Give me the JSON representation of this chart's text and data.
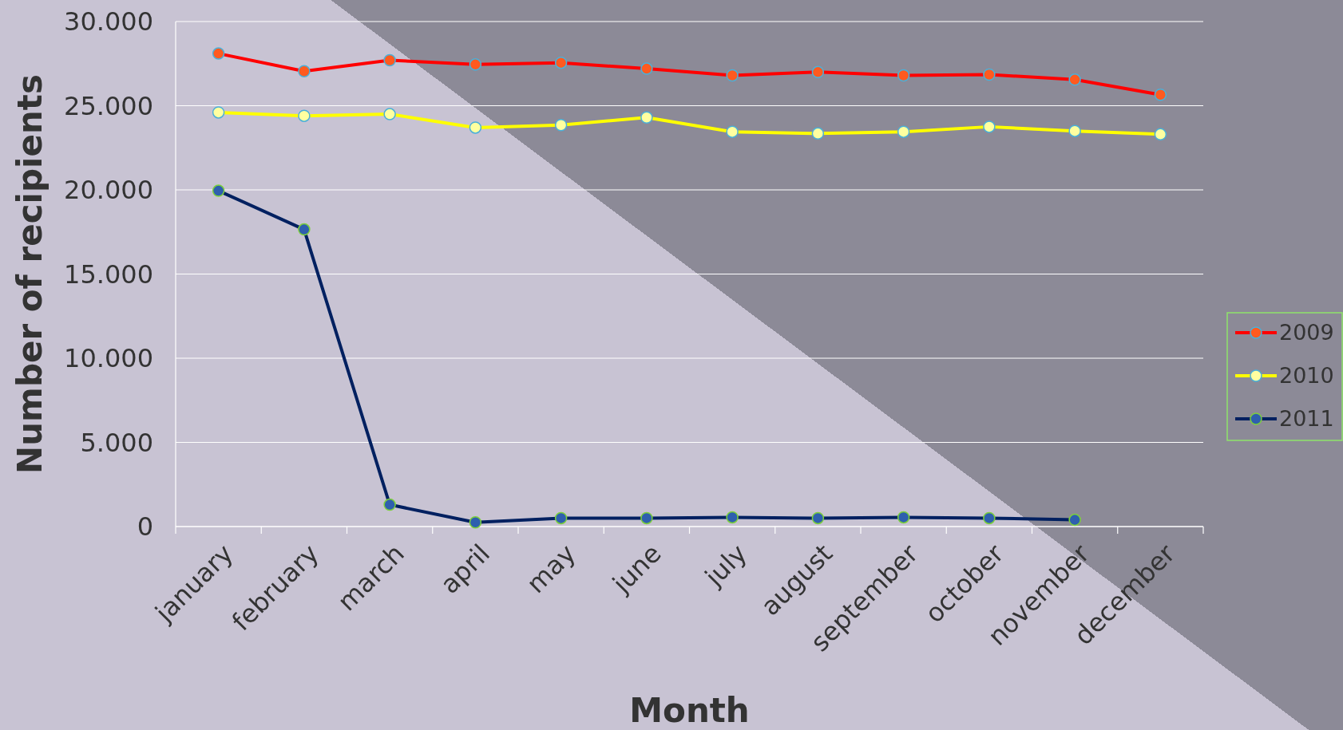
{
  "chart_data": {
    "type": "line",
    "xlabel": "Month",
    "ylabel": "Number of recipients",
    "categories": [
      "january",
      "february",
      "march",
      "april",
      "may",
      "june",
      "july",
      "august",
      "september",
      "october",
      "november",
      "december"
    ],
    "series": [
      {
        "name": "2009",
        "color": "#ff0000",
        "values": [
          28100,
          27050,
          27700,
          27450,
          27550,
          27200,
          26800,
          27000,
          26800,
          26850,
          26550,
          25650
        ]
      },
      {
        "name": "2010",
        "color": "#ffff00",
        "values": [
          24600,
          24400,
          24500,
          23700,
          23850,
          24300,
          23450,
          23350,
          23450,
          23750,
          23500,
          23300
        ]
      },
      {
        "name": "2011",
        "color": "#002060",
        "values": [
          19950,
          17650,
          1300,
          250,
          500,
          500,
          550,
          500,
          550,
          500,
          400,
          null
        ]
      }
    ],
    "ylim": [
      0,
      30000
    ],
    "yticks": [
      {
        "value": 0,
        "label": "0"
      },
      {
        "value": 5000,
        "label": "5.000"
      },
      {
        "value": 10000,
        "label": "10.000"
      },
      {
        "value": 15000,
        "label": "15.000"
      },
      {
        "value": 20000,
        "label": "20.000"
      },
      {
        "value": 25000,
        "label": "25.000"
      },
      {
        "value": 30000,
        "label": "30.000"
      }
    ],
    "grid": "y",
    "legend": "right",
    "marker": "circle",
    "line_style": "solid"
  }
}
